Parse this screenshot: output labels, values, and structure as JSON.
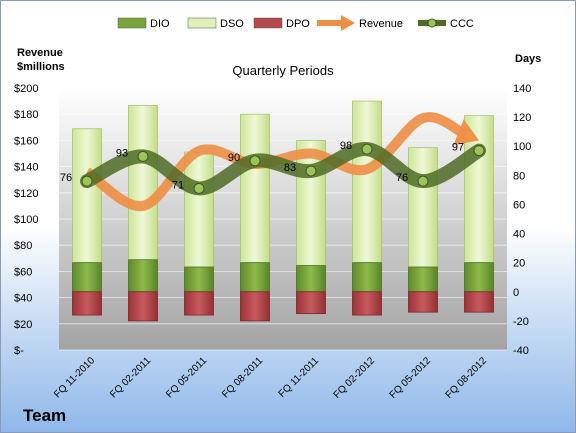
{
  "chart_data": {
    "type": "bar",
    "title": "Quarterly Periods",
    "team_label": "Team",
    "y_left_label": [
      "Revenue",
      "$millions"
    ],
    "y_right_label": "Days",
    "categories": [
      "FQ 11-2010",
      "FQ 02-2011",
      "FQ 05-2011",
      "FQ 08-2011",
      "FQ 11-2011",
      "FQ 02-2012",
      "FQ 05-2012",
      "FQ 08-2012"
    ],
    "y_left": {
      "range": [
        0,
        200
      ],
      "ticks": [
        0,
        20,
        40,
        60,
        80,
        100,
        120,
        140,
        160,
        180,
        200
      ],
      "tick_labels": [
        "$-",
        "$20",
        "$40",
        "$60",
        "$80",
        "$100",
        "$120",
        "$140",
        "$160",
        "$180",
        "$200"
      ]
    },
    "y_right": {
      "range": [
        -40,
        140
      ],
      "ticks": [
        -40,
        -20,
        0,
        20,
        40,
        60,
        80,
        100,
        120,
        140
      ]
    },
    "legend": {
      "position": "top",
      "items": [
        {
          "name": "DIO",
          "kind": "bar",
          "color": "#7aa53e"
        },
        {
          "name": "DSO",
          "kind": "bar",
          "color": "#dff0b8"
        },
        {
          "name": "DPO",
          "kind": "bar",
          "color": "#b5484c"
        },
        {
          "name": "Revenue",
          "kind": "arrow",
          "color": "#ee8e45"
        },
        {
          "name": "CCC",
          "kind": "line-marker",
          "color": "#4f6b26"
        }
      ]
    },
    "series": [
      {
        "name": "DIO",
        "axis": "right",
        "values": [
          20,
          22,
          17,
          20,
          18,
          20,
          17,
          20
        ]
      },
      {
        "name": "DSO",
        "axis": "right",
        "values": [
          92,
          106,
          79,
          102,
          86,
          111,
          82,
          101
        ]
      },
      {
        "name": "DPO",
        "axis": "right",
        "values": [
          -16,
          -20,
          -16,
          -20,
          -15,
          -16,
          -14,
          -14
        ]
      },
      {
        "name": "Revenue",
        "axis": "left",
        "values": [
          136,
          110,
          152,
          142,
          150,
          138,
          177,
          160
        ]
      },
      {
        "name": "CCC",
        "axis": "right",
        "values": [
          76,
          93,
          71,
          90,
          83,
          98,
          76,
          97
        ],
        "labels": [
          "76",
          "93",
          "71",
          "90",
          "83",
          "98",
          "76",
          "97"
        ]
      }
    ],
    "colors": {
      "dio": "#7aa53e",
      "dso": "#dff0b8",
      "dpo": "#b5484c",
      "revenue": "#ee8e45",
      "ccc": "#4f6b26",
      "plot_top": "#ffffff",
      "plot_bottom": "#a5a5a5"
    },
    "grid": true
  }
}
